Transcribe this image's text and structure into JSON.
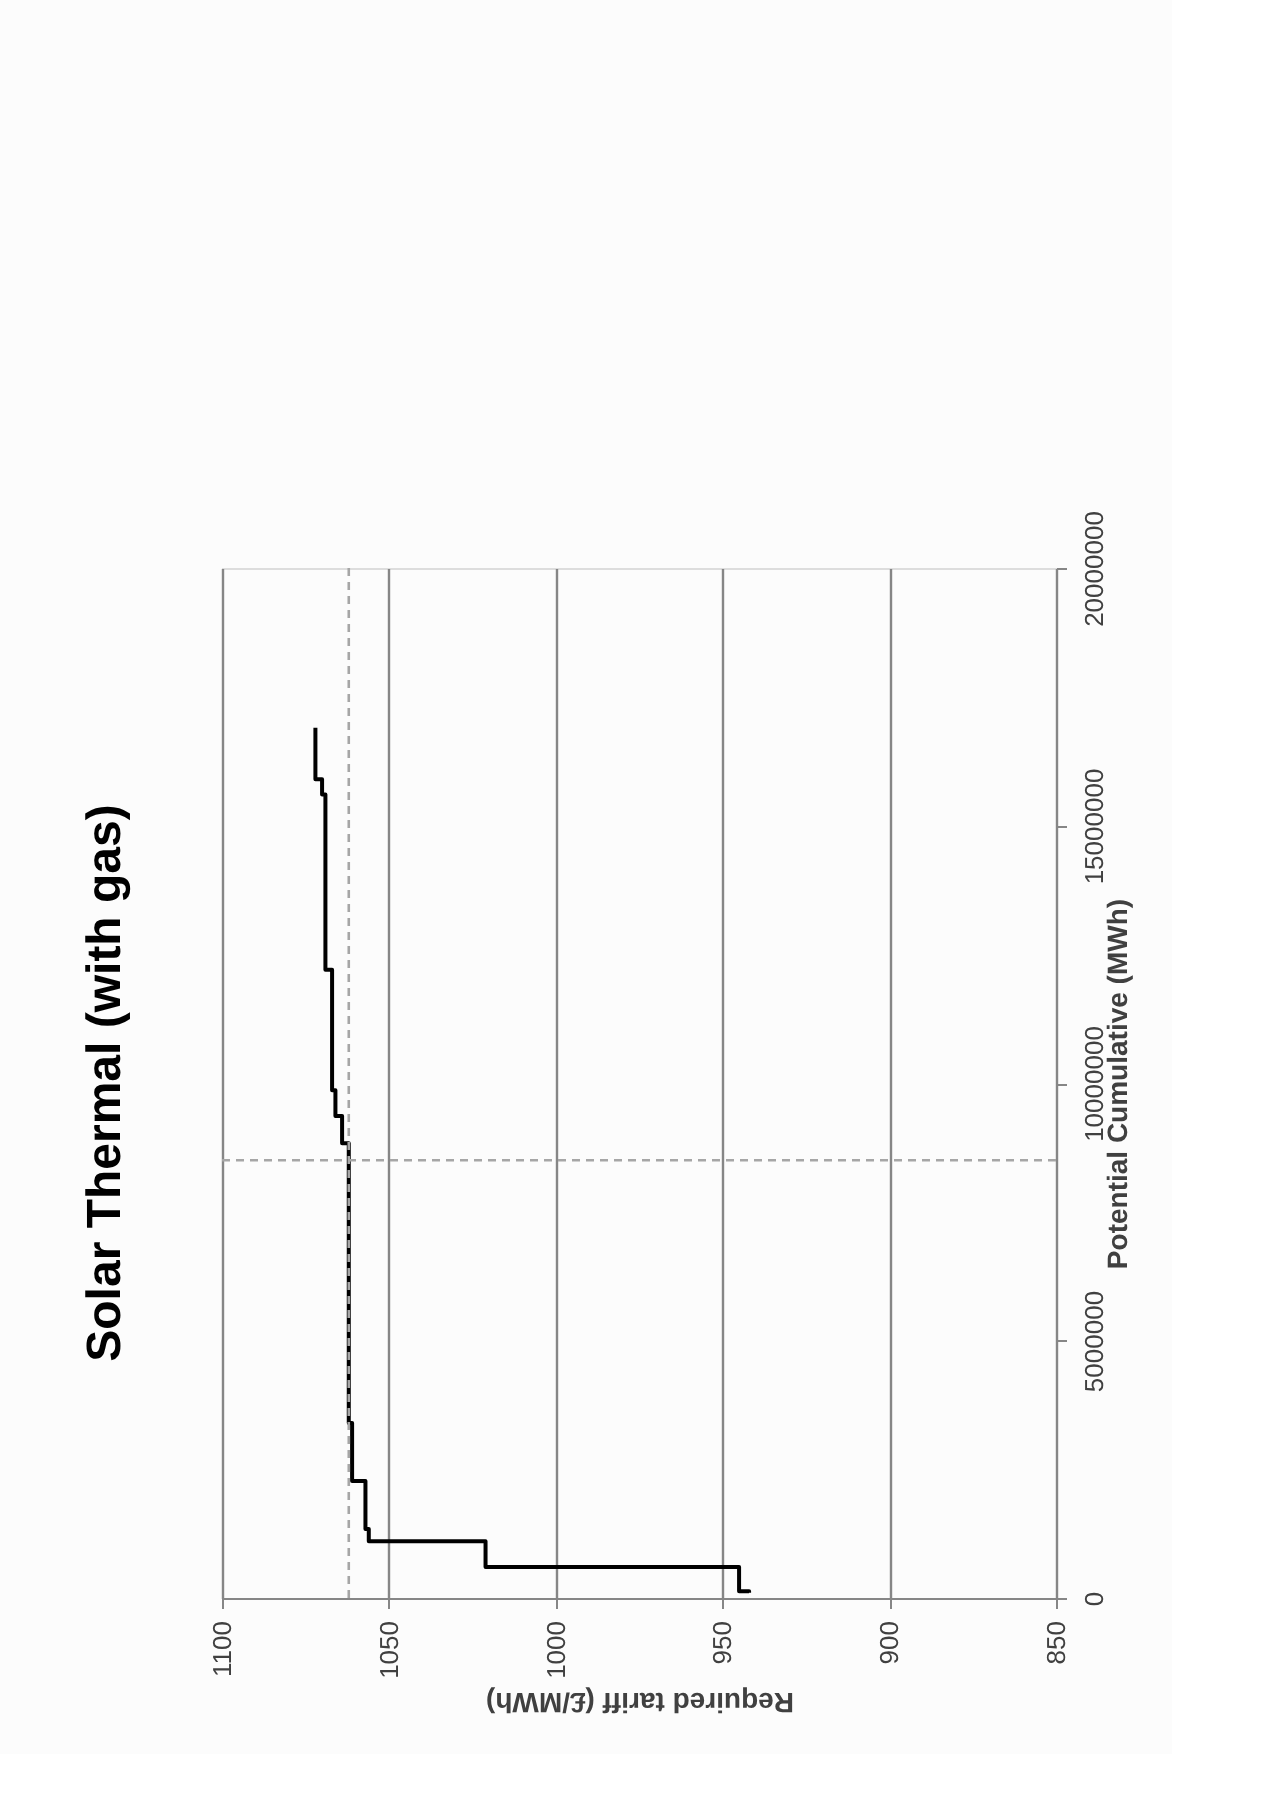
{
  "chart_data": {
    "type": "step",
    "title": "Solar Thermal (with gas)",
    "xlabel": "Required tariff (£/MWh)",
    "ylabel": "Potential Cumulative (MWh)",
    "x": [
      942,
      945,
      1021,
      1056,
      1057,
      1061,
      1061,
      1062,
      1064,
      1066,
      1067,
      1069,
      1070,
      1072,
      1072
    ],
    "series": [
      {
        "color": "#000000",
        "values": [
          100000,
          130000,
          600000,
          1100000,
          1340000,
          2270000,
          2370000,
          3400000,
          8830000,
          9360000,
          9860000,
          12200000,
          15600000,
          15900000,
          16900000
        ]
      }
    ],
    "xlim": [
      1100,
      850
    ],
    "xticks": [
      1100,
      1050,
      1000,
      950,
      900,
      850
    ],
    "ylim": [
      0,
      20000000
    ],
    "yticks": [
      0,
      5000000,
      10000000,
      15000000,
      20000000
    ],
    "grid": "x",
    "ref_lines": [
      {
        "axis": "x",
        "value": 1062,
        "color": "#a6a6a6",
        "line_style": "dashed"
      },
      {
        "axis": "y",
        "value": 8500000,
        "color": "#a6a6a6",
        "line_style": "dashed"
      }
    ]
  }
}
